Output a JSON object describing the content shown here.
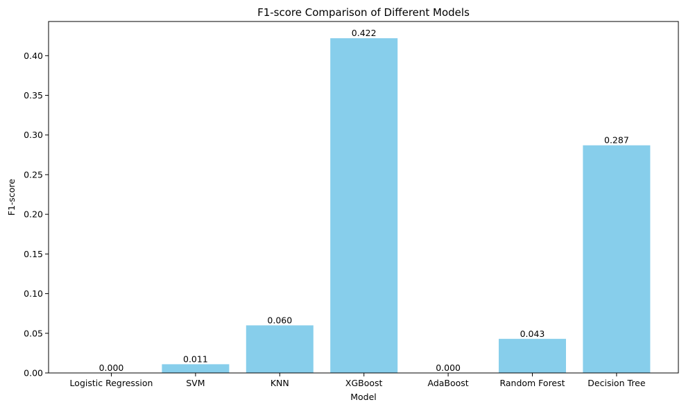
{
  "chart_data": {
    "type": "bar",
    "title": "F1-score Comparison of Different Models",
    "xlabel": "Model",
    "ylabel": "F1-score",
    "categories": [
      "Logistic Regression",
      "SVM",
      "KNN",
      "XGBoost",
      "AdaBoost",
      "Random Forest",
      "Decision Tree"
    ],
    "values": [
      0.0,
      0.011,
      0.06,
      0.422,
      0.0,
      0.043,
      0.287
    ],
    "value_labels": [
      "0.000",
      "0.011",
      "0.060",
      "0.422",
      "0.000",
      "0.043",
      "0.287"
    ],
    "ylim": [
      0,
      0.4431
    ],
    "yticks": [
      0.0,
      0.05,
      0.1,
      0.15,
      0.2,
      0.25,
      0.3,
      0.35,
      0.4
    ],
    "ytick_labels": [
      "0.00",
      "0.05",
      "0.10",
      "0.15",
      "0.20",
      "0.25",
      "0.30",
      "0.35",
      "0.40"
    ],
    "bar_color": "#87CEEB",
    "grid": false,
    "legend": "none"
  }
}
